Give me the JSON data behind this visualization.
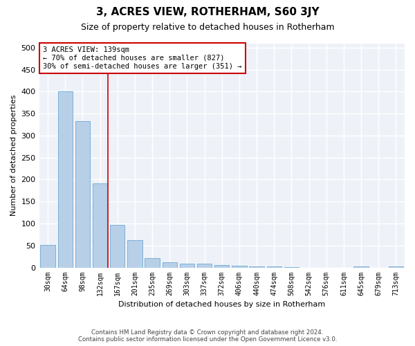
{
  "title": "3, ACRES VIEW, ROTHERHAM, S60 3JY",
  "subtitle": "Size of property relative to detached houses in Rotherham",
  "xlabel": "Distribution of detached houses by size in Rotherham",
  "ylabel": "Number of detached properties",
  "bar_labels": [
    "30sqm",
    "64sqm",
    "98sqm",
    "132sqm",
    "167sqm",
    "201sqm",
    "235sqm",
    "269sqm",
    "303sqm",
    "337sqm",
    "372sqm",
    "406sqm",
    "440sqm",
    "474sqm",
    "508sqm",
    "542sqm",
    "576sqm",
    "611sqm",
    "645sqm",
    "679sqm",
    "713sqm"
  ],
  "bar_values": [
    52,
    400,
    333,
    191,
    97,
    63,
    21,
    12,
    8,
    8,
    5,
    4,
    2,
    2,
    1,
    0,
    0,
    0,
    2,
    0,
    2
  ],
  "bar_color": "#b8cfe8",
  "bar_edge_color": "#6aaad4",
  "marker_line_color": "#cc0000",
  "annotation_line1": "3 ACRES VIEW: 139sqm",
  "annotation_line2": "← 70% of detached houses are smaller (827)",
  "annotation_line3": "30% of semi-detached houses are larger (351) →",
  "annotation_box_color": "#ffffff",
  "annotation_box_edge_color": "#cc0000",
  "ylim": [
    0,
    510
  ],
  "yticks": [
    0,
    50,
    100,
    150,
    200,
    250,
    300,
    350,
    400,
    450,
    500
  ],
  "footer_line1": "Contains HM Land Registry data © Crown copyright and database right 2024.",
  "footer_line2": "Contains public sector information licensed under the Open Government Licence v3.0.",
  "bg_color": "#eef2f8",
  "grid_color": "#ffffff",
  "fig_bg_color": "#ffffff"
}
